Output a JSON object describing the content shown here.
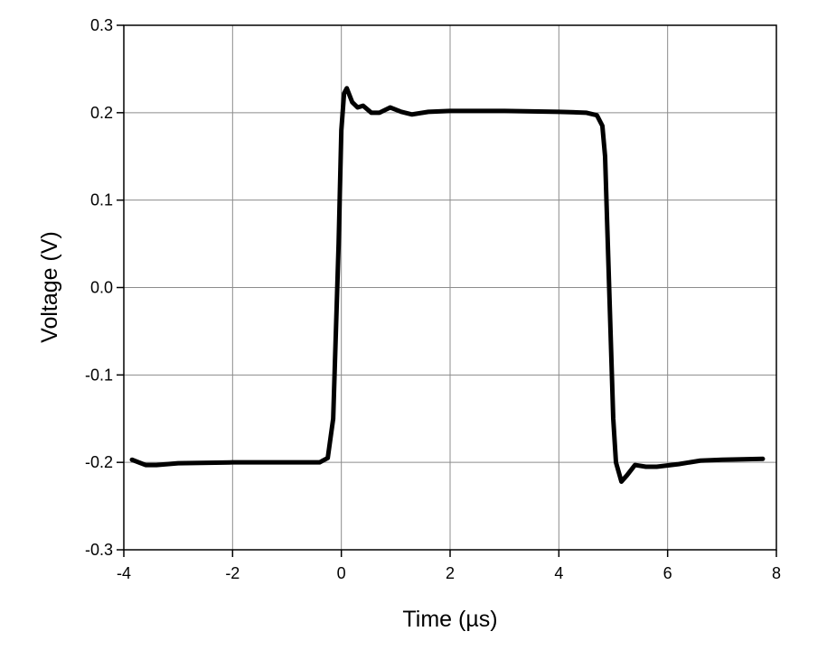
{
  "chart_data": {
    "type": "line",
    "x_label": "Time (µs)",
    "y_label": "Voltage (V)",
    "xlim": [
      -4,
      8
    ],
    "ylim": [
      -0.3,
      0.3
    ],
    "xticks": [
      -4,
      -2,
      0,
      2,
      4,
      6,
      8
    ],
    "yticks": [
      -0.3,
      -0.2,
      -0.1,
      {
        "value": 0,
        "label": "0.0"
      },
      0.1,
      0.2,
      0.3
    ],
    "grid": true,
    "series": [
      {
        "color": "#000000",
        "x": [
          -3.85,
          -3.6,
          -3.4,
          -3,
          -2,
          -1,
          -0.4,
          -0.25,
          -0.15,
          -0.1,
          -0.05,
          0.0,
          0.05,
          0.1,
          0.2,
          0.3,
          0.4,
          0.55,
          0.7,
          0.9,
          1.1,
          1.3,
          1.6,
          2,
          3,
          4,
          4.5,
          4.7,
          4.8,
          4.85,
          4.9,
          4.95,
          5.0,
          5.05,
          5.15,
          5.25,
          5.4,
          5.6,
          5.8,
          6.2,
          6.6,
          7,
          7.75
        ],
        "values": [
          -0.197,
          -0.203,
          -0.203,
          -0.201,
          -0.2,
          -0.2,
          -0.2,
          -0.195,
          -0.15,
          -0.05,
          0.05,
          0.18,
          0.222,
          0.228,
          0.212,
          0.206,
          0.208,
          0.2,
          0.2,
          0.206,
          0.201,
          0.198,
          0.201,
          0.202,
          0.202,
          0.201,
          0.2,
          0.197,
          0.185,
          0.15,
          0.05,
          -0.05,
          -0.15,
          -0.2,
          -0.222,
          -0.215,
          -0.203,
          -0.205,
          -0.205,
          -0.202,
          -0.198,
          -0.197,
          -0.196
        ]
      }
    ]
  }
}
